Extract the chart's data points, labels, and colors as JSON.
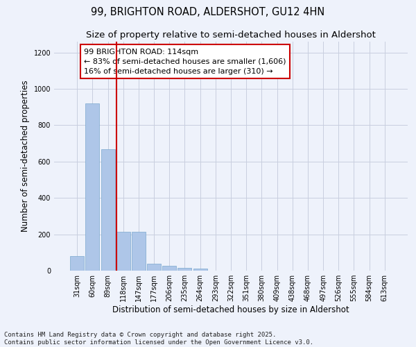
{
  "title_line1": "99, BRIGHTON ROAD, ALDERSHOT, GU12 4HN",
  "title_line2": "Size of property relative to semi-detached houses in Aldershot",
  "xlabel": "Distribution of semi-detached houses by size in Aldershot",
  "ylabel": "Number of semi-detached properties",
  "categories": [
    "31sqm",
    "60sqm",
    "89sqm",
    "118sqm",
    "147sqm",
    "177sqm",
    "206sqm",
    "235sqm",
    "264sqm",
    "293sqm",
    "322sqm",
    "351sqm",
    "380sqm",
    "409sqm",
    "438sqm",
    "468sqm",
    "497sqm",
    "526sqm",
    "555sqm",
    "584sqm",
    "613sqm"
  ],
  "values": [
    80,
    920,
    670,
    215,
    215,
    40,
    25,
    15,
    10,
    0,
    0,
    0,
    0,
    0,
    0,
    0,
    0,
    0,
    0,
    0,
    0
  ],
  "bar_color": "#aec6e8",
  "bar_edge_color": "#7aa8ce",
  "vline_color": "#cc0000",
  "annotation_box_text": "99 BRIGHTON ROAD: 114sqm\n← 83% of semi-detached houses are smaller (1,606)\n16% of semi-detached houses are larger (310) →",
  "ylim": [
    0,
    1260
  ],
  "yticks": [
    0,
    200,
    400,
    600,
    800,
    1000,
    1200
  ],
  "footer_line1": "Contains HM Land Registry data © Crown copyright and database right 2025.",
  "footer_line2": "Contains public sector information licensed under the Open Government Licence v3.0.",
  "background_color": "#eef2fb",
  "grid_color": "#c8cedf",
  "title_fontsize": 10.5,
  "subtitle_fontsize": 9.5,
  "axis_label_fontsize": 8.5,
  "tick_fontsize": 7,
  "annotation_fontsize": 8,
  "footer_fontsize": 6.5
}
